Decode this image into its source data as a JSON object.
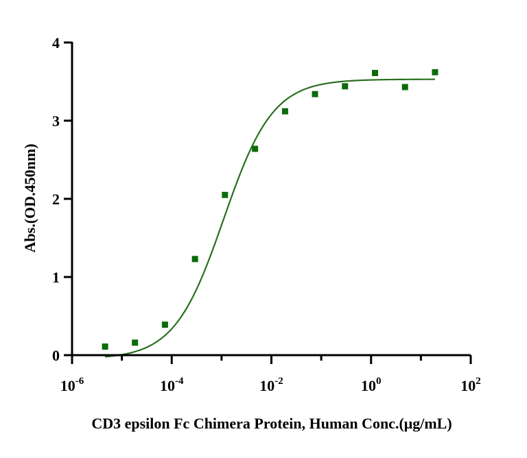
{
  "chart_data": {
    "type": "scatter",
    "title": "",
    "xlabel": "CD3 epsilon Fc Chimera Protein, Human Conc.(μg/mL)",
    "ylabel": "Abs.(OD.450nm)",
    "xscale": "log",
    "xlim": [
      1e-06,
      100
    ],
    "ylim": [
      0,
      4
    ],
    "x_ticks": [
      {
        "base": "10",
        "exp": "-6",
        "value": 1e-06
      },
      {
        "base": "10",
        "exp": "-4",
        "value": 0.0001
      },
      {
        "base": "10",
        "exp": "-2",
        "value": 0.01
      },
      {
        "base": "10",
        "exp": "0",
        "value": 1
      },
      {
        "base": "10",
        "exp": "2",
        "value": 100
      }
    ],
    "y_ticks": [
      {
        "label": "0",
        "value": 0
      },
      {
        "label": "1",
        "value": 1
      },
      {
        "label": "2",
        "value": 2
      },
      {
        "label": "3",
        "value": 3
      },
      {
        "label": "4",
        "value": 4
      }
    ],
    "grid": false,
    "legend": "none",
    "marker_color": "#0b6b0b",
    "line_color": "#2a6e1f",
    "series": [
      {
        "x": [
          4.6e-06,
          1.83e-05,
          7.32e-05,
          0.000293,
          0.00117,
          0.00469,
          0.0188,
          0.075,
          0.3,
          1.2,
          4.8,
          19.2
        ],
        "y": [
          0.11,
          0.16,
          0.39,
          1.23,
          2.05,
          2.64,
          3.12,
          3.34,
          3.44,
          3.61,
          3.43,
          3.62
        ]
      }
    ],
    "fit": {
      "model": "4PL",
      "bottom": -0.05,
      "top": 3.53,
      "ec50": 0.0011,
      "hill": 0.88,
      "x_range": [
        4.6e-06,
        19.2
      ]
    }
  }
}
